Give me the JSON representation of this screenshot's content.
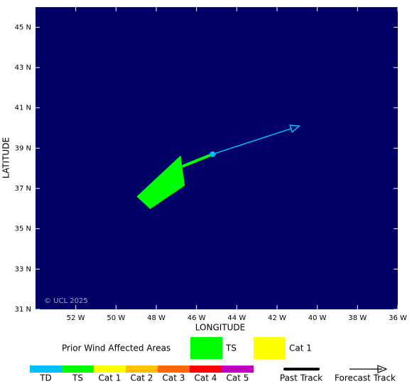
{
  "chart_data": {
    "type": "map",
    "xlabel": "LONGITUDE",
    "ylabel": "LATITUDE",
    "xlim": [
      -54,
      -36
    ],
    "ylim": [
      31,
      46
    ],
    "xticks": [
      {
        "value": -52,
        "label": "52 W"
      },
      {
        "value": -50,
        "label": "50 W"
      },
      {
        "value": -48,
        "label": "48 W"
      },
      {
        "value": -46,
        "label": "46 W"
      },
      {
        "value": -44,
        "label": "44 W"
      },
      {
        "value": -42,
        "label": "42 W"
      },
      {
        "value": -40,
        "label": "40 W"
      },
      {
        "value": -38,
        "label": "38 W"
      },
      {
        "value": -36,
        "label": "36 W"
      }
    ],
    "yticks": [
      {
        "value": 31,
        "label": "31 N"
      },
      {
        "value": 33,
        "label": "33 N"
      },
      {
        "value": 35,
        "label": "35 N"
      },
      {
        "value": 37,
        "label": "37 N"
      },
      {
        "value": 39,
        "label": "39 N"
      },
      {
        "value": 41,
        "label": "41 N"
      },
      {
        "value": 43,
        "label": "43 N"
      },
      {
        "value": 45,
        "label": "45 N"
      }
    ],
    "background": "#000066",
    "watermark": "© UCL 2025",
    "wind_areas": {
      "title": "Prior Wind Affected Areas",
      "legend": [
        {
          "name": "TS",
          "color": "#00ff00"
        },
        {
          "name": "Cat 1",
          "color": "#ffff00"
        }
      ],
      "polygons": [
        {
          "color": "#00ff00",
          "x": [
            -48.95,
            -46.8,
            -46.6,
            -48.3
          ],
          "y": [
            36.6,
            38.6,
            37.15,
            36.0
          ]
        }
      ]
    },
    "tracks": [
      {
        "name": "Past Track",
        "color": "#00ff00",
        "x": [
          -46.7,
          -45.2
        ],
        "y": [
          38.1,
          38.7
        ]
      },
      {
        "name": "Forecast Track",
        "color": "#00bfff",
        "x": [
          -45.2,
          -40.9
        ],
        "y": [
          38.7,
          40.1
        ]
      }
    ],
    "scale": [
      {
        "name": "TD",
        "color": "#00bfff"
      },
      {
        "name": "TS",
        "color": "#00ff00"
      },
      {
        "name": "Cat 1",
        "color": "#ffff00"
      },
      {
        "name": "Cat 2",
        "color": "#ffc000"
      },
      {
        "name": "Cat 3",
        "color": "#ff6600"
      },
      {
        "name": "Cat 4",
        "color": "#ff0000"
      },
      {
        "name": "Cat 5",
        "color": "#c000c0"
      }
    ]
  }
}
